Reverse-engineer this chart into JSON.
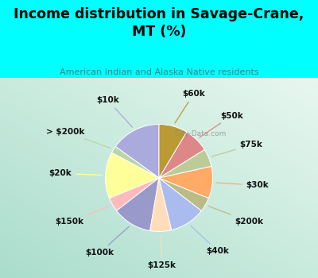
{
  "title": "Income distribution in Savage-Crane,\nMT (%)",
  "subtitle": "American Indian and Alaska Native residents",
  "labels": [
    "$10k",
    "> $200k",
    "$20k",
    "$150k",
    "$100k",
    "$125k",
    "$40k",
    "$200k",
    "$30k",
    "$75k",
    "$50k",
    "$60k"
  ],
  "values": [
    14,
    2,
    13,
    4,
    11,
    6,
    10,
    4,
    9,
    5,
    7,
    8
  ],
  "colors": [
    "#aaaadd",
    "#bbd4aa",
    "#ffff99",
    "#ffbbbb",
    "#9999cc",
    "#ffddbb",
    "#aabbee",
    "#bbbb88",
    "#ffaa66",
    "#bbcc99",
    "#dd8888",
    "#bb9933"
  ],
  "background_color": "#00ffff",
  "watermark": "  City-Data.com",
  "label_fontsize": 7.5,
  "title_fontsize": 12.5
}
